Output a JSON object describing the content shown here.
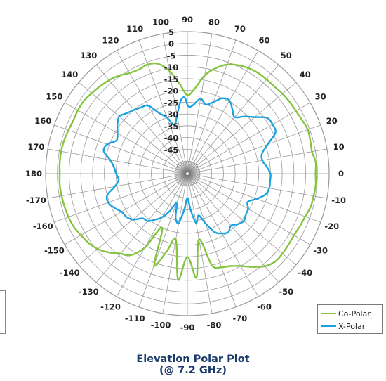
{
  "title_line1": "Elevation Polar Plot",
  "title_line2": "(@ 7.2 GHz)",
  "legend": {
    "copolar_label": "Co-Polar",
    "xpolar_label": "X-Polar"
  },
  "colors": {
    "copolar": "#84c441",
    "xpolar": "#1aa3e0",
    "grid": "#9a9a9a",
    "title": "#1a3a6b"
  },
  "chart_data": {
    "type": "polar",
    "title": "Elevation Polar Plot (@ 7.2 GHz)",
    "angle_labels": [
      0,
      10,
      20,
      30,
      40,
      50,
      60,
      70,
      80,
      90,
      100,
      110,
      120,
      130,
      140,
      150,
      160,
      170,
      180,
      -170,
      -160,
      -150,
      -140,
      -130,
      -120,
      -110,
      -100,
      -90,
      -80,
      -70,
      -60,
      -50,
      -40,
      -30,
      -20,
      -10
    ],
    "radial_labels": [
      "5",
      "0",
      "-5",
      "-10",
      "-15",
      "-20",
      "-25",
      "-30",
      "-35",
      "-40",
      "-45"
    ],
    "radial_range": [
      -50,
      5
    ],
    "radial_unit": "dB",
    "angle_direction": "counterclockwise",
    "zero_position": "right",
    "legend_position": "bottom-right",
    "series": [
      {
        "name": "Co-Polar",
        "angles": [
          0,
          5,
          10,
          15,
          20,
          25,
          30,
          35,
          40,
          45,
          50,
          55,
          60,
          65,
          70,
          75,
          80,
          85,
          90,
          95,
          100,
          105,
          110,
          115,
          120,
          125,
          130,
          135,
          140,
          145,
          150,
          155,
          160,
          165,
          170,
          175,
          180,
          -175,
          -170,
          -165,
          -160,
          -155,
          -150,
          -145,
          -140,
          -135,
          -130,
          -125,
          -120,
          -115,
          -110,
          -105,
          -100,
          -95,
          -90,
          -85,
          -80,
          -75,
          -70,
          -65,
          -60,
          -55,
          -50,
          -45,
          -40,
          -35,
          -30,
          -25,
          -20,
          -15,
          -10,
          -5
        ],
        "values": [
          -0.8,
          -0.5,
          -1.5,
          -1.2,
          -0.8,
          -1.5,
          -2.0,
          -2.2,
          -2.5,
          -3.0,
          -3.0,
          -3.0,
          -3.5,
          -4.5,
          -6.0,
          -9.0,
          -13.0,
          -19.0,
          -22.0,
          -17.0,
          -11.0,
          -7.0,
          -6.0,
          -6.5,
          -6.0,
          -4.5,
          -3.5,
          -2.8,
          -2.2,
          -1.5,
          -1.5,
          -1.8,
          -1.5,
          -1.0,
          -0.8,
          -0.8,
          -1.0,
          -0.8,
          -1.0,
          -1.2,
          -1.5,
          -2.0,
          -3.0,
          -4.0,
          -5.5,
          -8.0,
          -11.0,
          -13.0,
          -19.0,
          -30.0,
          -14.0,
          -21.0,
          -27.0,
          -10.0,
          -20.0,
          -11.0,
          -27.0,
          -15.0,
          -13.0,
          -12.0,
          -10.0,
          -7.0,
          -4.0,
          -2.5,
          -2.5,
          -2.8,
          -3.0,
          -2.5,
          -2.0,
          -1.0,
          -0.8,
          -0.5
        ]
      },
      {
        "name": "X-Polar",
        "angles": [
          0,
          5,
          10,
          15,
          20,
          25,
          30,
          35,
          40,
          45,
          50,
          55,
          60,
          65,
          70,
          75,
          80,
          85,
          88,
          90,
          92,
          95,
          100,
          105,
          110,
          115,
          120,
          125,
          130,
          135,
          140,
          145,
          150,
          155,
          160,
          165,
          170,
          175,
          180,
          -175,
          -170,
          -165,
          -160,
          -155,
          -150,
          -145,
          -140,
          -135,
          -130,
          -125,
          -120,
          -115,
          -110,
          -105,
          -100,
          -95,
          -90,
          -85,
          -80,
          -75,
          -70,
          -65,
          -60,
          -55,
          -50,
          -45,
          -40,
          -35,
          -30,
          -25,
          -20,
          -15,
          -10,
          -5
        ],
        "values": [
          -20.0,
          -21.5,
          -23.0,
          -22.5,
          -19.0,
          -14.0,
          -13.5,
          -14.0,
          -18.0,
          -21.0,
          -24.0,
          -22.0,
          -19.5,
          -20.0,
          -23.0,
          -25.0,
          -23.0,
          -26.0,
          -27.0,
          -26.0,
          -23.0,
          -24.0,
          -30.0,
          -34.0,
          -30.0,
          -27.0,
          -22.0,
          -21.0,
          -20.0,
          -19.0,
          -17.5,
          -19.0,
          -21.0,
          -22.0,
          -19.0,
          -18.5,
          -22.0,
          -24.0,
          -25.0,
          -26.0,
          -24.0,
          -20.0,
          -19.5,
          -21.0,
          -23.0,
          -23.5,
          -25.0,
          -28.5,
          -29.0,
          -31.5,
          -34.0,
          -38.0,
          -42.0,
          -36.0,
          -34.0,
          -40.0,
          -45.0,
          -40.0,
          -34.0,
          -37.0,
          -33.0,
          -28.0,
          -26.0,
          -25.0,
          -26.5,
          -25.0,
          -24.0,
          -25.0,
          -25.5,
          -27.0,
          -24.0,
          -21.0,
          -20.0,
          -20.0
        ]
      }
    ]
  }
}
